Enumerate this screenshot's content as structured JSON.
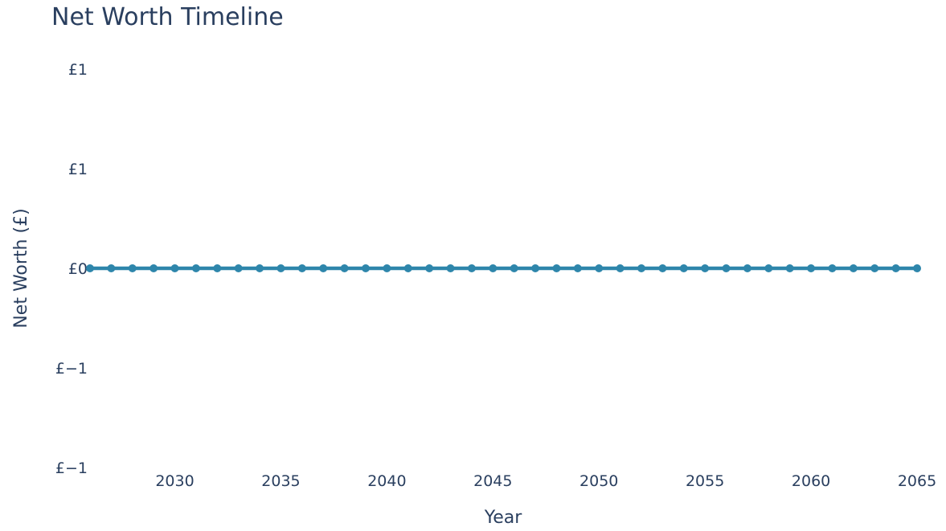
{
  "chart_data": {
    "type": "line",
    "title": "Net Worth Timeline",
    "xlabel": "Year",
    "ylabel": "Net Worth (£)",
    "xlim": [
      2026,
      2065
    ],
    "ylim": [
      -1,
      1
    ],
    "x_ticks": [
      {
        "value": 2030,
        "label": "2030"
      },
      {
        "value": 2035,
        "label": "2035"
      },
      {
        "value": 2040,
        "label": "2040"
      },
      {
        "value": 2045,
        "label": "2045"
      },
      {
        "value": 2050,
        "label": "2050"
      },
      {
        "value": 2055,
        "label": "2055"
      },
      {
        "value": 2060,
        "label": "2060"
      },
      {
        "value": 2065,
        "label": "2065"
      }
    ],
    "y_ticks": [
      {
        "value": 1,
        "label": "£1"
      },
      {
        "value": 0.5,
        "label": "£1"
      },
      {
        "value": 0,
        "label": "£0"
      },
      {
        "value": -0.5,
        "label": "£−1"
      },
      {
        "value": -1,
        "label": "£−1"
      }
    ],
    "grid": false,
    "legend": "none",
    "color": "#2e86ab",
    "series": [
      {
        "x": [
          2026,
          2027,
          2028,
          2029,
          2030,
          2031,
          2032,
          2033,
          2034,
          2035,
          2036,
          2037,
          2038,
          2039,
          2040,
          2041,
          2042,
          2043,
          2044,
          2045,
          2046,
          2047,
          2048,
          2049,
          2050,
          2051,
          2052,
          2053,
          2054,
          2055,
          2056,
          2057,
          2058,
          2059,
          2060,
          2061,
          2062,
          2063,
          2064,
          2065
        ],
        "values": [
          0,
          0,
          0,
          0,
          0,
          0,
          0,
          0,
          0,
          0,
          0,
          0,
          0,
          0,
          0,
          0,
          0,
          0,
          0,
          0,
          0,
          0,
          0,
          0,
          0,
          0,
          0,
          0,
          0,
          0,
          0,
          0,
          0,
          0,
          0,
          0,
          0,
          0,
          0,
          0
        ]
      }
    ]
  }
}
